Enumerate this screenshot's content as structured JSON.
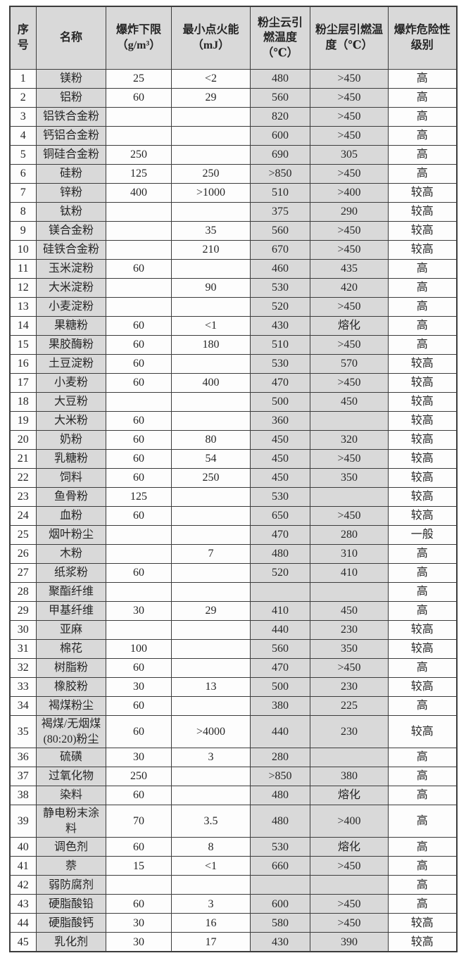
{
  "colors": {
    "page_background": "#ffffff",
    "shaded_cell_background": "#d9d9d9",
    "border": "#3c3c3c",
    "text": "#262626"
  },
  "table": {
    "headers": [
      "序号",
      "名称",
      "爆炸下限（g/m³）",
      "最小点火能（mJ）",
      "粉尘云引燃温度（℃）",
      "粉尘层引燃温度（℃）",
      "爆炸危险性级别"
    ],
    "rows": [
      [
        "1",
        "镁粉",
        "25",
        "<2",
        "480",
        ">450",
        "高"
      ],
      [
        "2",
        "铝粉",
        "60",
        "29",
        "560",
        ">450",
        "高"
      ],
      [
        "3",
        "铝铁合金粉",
        "",
        "",
        "820",
        ">450",
        "高"
      ],
      [
        "4",
        "钙铝合金粉",
        "",
        "",
        "600",
        ">450",
        "高"
      ],
      [
        "5",
        "铜硅合金粉",
        "250",
        "",
        "690",
        "305",
        "高"
      ],
      [
        "6",
        "硅粉",
        "125",
        "250",
        ">850",
        ">450",
        "高"
      ],
      [
        "7",
        "锌粉",
        "400",
        ">1000",
        "510",
        ">400",
        "较高"
      ],
      [
        "8",
        "钛粉",
        "",
        "",
        "375",
        "290",
        "较高"
      ],
      [
        "9",
        "镁合金粉",
        "",
        "35",
        "560",
        ">450",
        "较高"
      ],
      [
        "10",
        "硅铁合金粉",
        "",
        "210",
        "670",
        ">450",
        "较高"
      ],
      [
        "11",
        "玉米淀粉",
        "60",
        "",
        "460",
        "435",
        "高"
      ],
      [
        "12",
        "大米淀粉",
        "",
        "90",
        "530",
        "420",
        "高"
      ],
      [
        "13",
        "小麦淀粉",
        "",
        "",
        "520",
        ">450",
        "高"
      ],
      [
        "14",
        "果糖粉",
        "60",
        "<1",
        "430",
        "熔化",
        "高"
      ],
      [
        "15",
        "果胶酶粉",
        "60",
        "180",
        "510",
        ">450",
        "高"
      ],
      [
        "16",
        "土豆淀粉",
        "60",
        "",
        "530",
        "570",
        "较高"
      ],
      [
        "17",
        "小麦粉",
        "60",
        "400",
        "470",
        ">450",
        "较高"
      ],
      [
        "18",
        "大豆粉",
        "",
        "",
        "500",
        "450",
        "较高"
      ],
      [
        "19",
        "大米粉",
        "60",
        "",
        "360",
        "",
        "较高"
      ],
      [
        "20",
        "奶粉",
        "60",
        "80",
        "450",
        "320",
        "较高"
      ],
      [
        "21",
        "乳糖粉",
        "60",
        "54",
        "450",
        ">450",
        "较高"
      ],
      [
        "22",
        "饲料",
        "60",
        "250",
        "450",
        "350",
        "较高"
      ],
      [
        "23",
        "鱼骨粉",
        "125",
        "",
        "530",
        "",
        "较高"
      ],
      [
        "24",
        "血粉",
        "60",
        "",
        "650",
        ">450",
        "较高"
      ],
      [
        "25",
        "烟叶粉尘",
        "",
        "",
        "470",
        "280",
        "一般"
      ],
      [
        "26",
        "木粉",
        "",
        "7",
        "480",
        "310",
        "高"
      ],
      [
        "27",
        "纸浆粉",
        "60",
        "",
        "520",
        "410",
        "高"
      ],
      [
        "28",
        "聚酯纤维",
        "",
        "",
        "",
        "",
        "高"
      ],
      [
        "29",
        "甲基纤维",
        "30",
        "29",
        "410",
        "450",
        "高"
      ],
      [
        "30",
        "亚麻",
        "",
        "",
        "440",
        "230",
        "较高"
      ],
      [
        "31",
        "棉花",
        "100",
        "",
        "560",
        "350",
        "较高"
      ],
      [
        "32",
        "树脂粉",
        "60",
        "",
        "470",
        ">450",
        "高"
      ],
      [
        "33",
        "橡胶粉",
        "30",
        "13",
        "500",
        "230",
        "较高"
      ],
      [
        "34",
        "褐煤粉尘",
        "60",
        "",
        "380",
        "225",
        "高"
      ],
      [
        "35",
        "褐煤/无烟煤(80:20)粉尘",
        "60",
        ">4000",
        "440",
        "230",
        "较高"
      ],
      [
        "36",
        "硫磺",
        "30",
        "3",
        "280",
        "",
        "高"
      ],
      [
        "37",
        "过氧化物",
        "250",
        "",
        ">850",
        "380",
        "高"
      ],
      [
        "38",
        "染料",
        "60",
        "",
        "480",
        "熔化",
        "高"
      ],
      [
        "39",
        "静电粉末涂料",
        "70",
        "3.5",
        "480",
        ">400",
        "高"
      ],
      [
        "40",
        "调色剂",
        "60",
        "8",
        "530",
        "熔化",
        "高"
      ],
      [
        "41",
        "萘",
        "15",
        "<1",
        "660",
        ">450",
        "高"
      ],
      [
        "42",
        "弱防腐剂",
        "",
        "",
        "",
        "",
        "高"
      ],
      [
        "43",
        "硬脂酸铅",
        "60",
        "3",
        "600",
        ">450",
        "高"
      ],
      [
        "44",
        "硬脂酸钙",
        "30",
        "16",
        "580",
        ">450",
        "较高"
      ],
      [
        "45",
        "乳化剂",
        "30",
        "17",
        "430",
        "390",
        "较高"
      ]
    ]
  }
}
